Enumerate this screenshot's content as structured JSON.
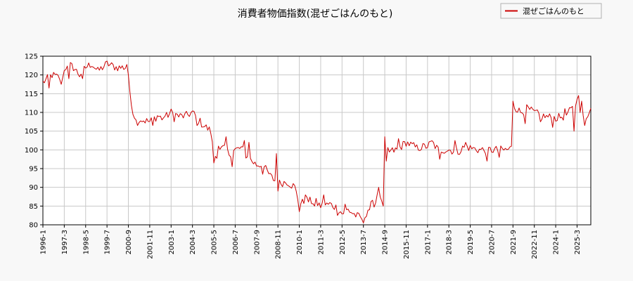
{
  "chart_data": {
    "type": "line",
    "title": "消費者物価指数(混ぜごはんのもと)",
    "xlabel": "",
    "ylabel": "",
    "ylim": [
      80,
      125
    ],
    "yticks": [
      80,
      85,
      90,
      95,
      100,
      105,
      110,
      115,
      120,
      125
    ],
    "x_start": "1996-1",
    "x_end": "2025-12",
    "xticks": [
      "1996-1",
      "1997-3",
      "1998-5",
      "1999-7",
      "2000-9",
      "2001-11",
      "2003-1",
      "2004-3",
      "2005-5",
      "2006-7",
      "2007-9",
      "2008-11",
      "2010-1",
      "2011-3",
      "2012-5",
      "2013-7",
      "2014-9",
      "2015-11",
      "2017-1",
      "2018-3",
      "2019-5",
      "2020-7",
      "2021-9",
      "2022-11",
      "2024-1",
      "2025-3"
    ],
    "grid": true,
    "legend_position": "top-right",
    "series": [
      {
        "name": "混ぜごはんのもと",
        "color": "#cc0000",
        "anchors": [
          [
            "1996-1",
            118
          ],
          [
            "1996-7",
            120
          ],
          [
            "1997-1",
            119
          ],
          [
            "1997-3",
            121
          ],
          [
            "1997-5",
            123
          ],
          [
            "1997-9",
            122
          ],
          [
            "1998-1",
            120
          ],
          [
            "1998-5",
            122
          ],
          [
            "1998-9",
            123
          ],
          [
            "1999-1",
            121
          ],
          [
            "1999-7",
            123
          ],
          [
            "2000-1",
            122
          ],
          [
            "2000-7",
            122
          ],
          [
            "2000-8",
            123
          ],
          [
            "2000-9",
            117
          ],
          [
            "2000-11",
            112
          ],
          [
            "2001-1",
            109
          ],
          [
            "2001-6",
            108
          ],
          [
            "2001-11",
            107.5
          ],
          [
            "2002-4",
            109
          ],
          [
            "2002-10",
            109
          ],
          [
            "2003-1",
            110
          ],
          [
            "2003-6",
            109
          ],
          [
            "2003-10",
            109
          ],
          [
            "2004-3",
            110
          ],
          [
            "2004-9",
            107
          ],
          [
            "2005-3",
            105
          ],
          [
            "2005-5",
            98
          ],
          [
            "2005-11",
            100.5
          ],
          [
            "2006-3",
            99
          ],
          [
            "2006-7",
            100
          ],
          [
            "2006-11",
            100.5
          ],
          [
            "2007-3",
            98
          ],
          [
            "2007-9",
            96
          ],
          [
            "2008-1",
            96
          ],
          [
            "2008-6",
            93
          ],
          [
            "2008-11",
            91
          ],
          [
            "2009-5",
            91.5
          ],
          [
            "2009-10",
            90
          ],
          [
            "2010-1",
            85.5
          ],
          [
            "2010-6",
            86.5
          ],
          [
            "2010-12",
            86
          ],
          [
            "2011-3",
            85
          ],
          [
            "2011-9",
            85.5
          ],
          [
            "2012-2",
            84.5
          ],
          [
            "2012-5",
            83
          ],
          [
            "2012-9",
            84
          ],
          [
            "2013-2",
            82.5
          ],
          [
            "2013-7",
            81.5
          ],
          [
            "2013-11",
            85
          ],
          [
            "2014-3",
            86
          ],
          [
            "2014-8",
            87
          ],
          [
            "2014-9",
            101
          ],
          [
            "2014-12",
            99.5
          ],
          [
            "2015-5",
            100
          ],
          [
            "2015-11",
            102
          ],
          [
            "2016-6",
            100.5
          ],
          [
            "2017-1",
            101
          ],
          [
            "2017-4",
            102
          ],
          [
            "2017-8",
            100
          ],
          [
            "2018-3",
            100
          ],
          [
            "2018-9",
            99.5
          ],
          [
            "2019-2",
            101
          ],
          [
            "2019-5",
            100.5
          ],
          [
            "2019-11",
            100
          ],
          [
            "2020-4",
            100
          ],
          [
            "2020-7",
            100
          ],
          [
            "2020-12",
            100
          ],
          [
            "2021-5",
            100
          ],
          [
            "2021-8",
            100.5
          ],
          [
            "2021-9",
            112
          ],
          [
            "2022-2",
            110
          ],
          [
            "2022-6",
            111
          ],
          [
            "2022-11",
            110
          ],
          [
            "2023-4",
            109
          ],
          [
            "2024-1",
            108.5
          ],
          [
            "2024-7",
            109
          ],
          [
            "2024-12",
            111
          ],
          [
            "2025-3",
            113
          ],
          [
            "2025-6",
            110
          ],
          [
            "2025-9",
            108
          ],
          [
            "2025-12",
            112
          ]
        ],
        "spikes": [
          [
            "1996-5",
            116.5
          ],
          [
            "1997-1",
            117.5
          ],
          [
            "1997-6",
            119
          ],
          [
            "1998-3",
            119
          ],
          [
            "2000-9",
            120
          ],
          [
            "2001-3",
            106.5
          ],
          [
            "2002-1",
            106.5
          ],
          [
            "2002-7",
            108
          ],
          [
            "2003-3",
            107.5
          ],
          [
            "2004-6",
            106.5
          ],
          [
            "2005-5",
            96.5
          ],
          [
            "2005-8",
            101
          ],
          [
            "2006-1",
            103.5
          ],
          [
            "2006-5",
            95.5
          ],
          [
            "2007-1",
            102.5
          ],
          [
            "2007-4",
            102
          ],
          [
            "2008-1",
            93.5
          ],
          [
            "2008-10",
            99
          ],
          [
            "2008-11",
            89
          ],
          [
            "2009-9",
            91
          ],
          [
            "2010-1",
            83.5
          ],
          [
            "2010-5",
            88
          ],
          [
            "2010-11",
            85
          ],
          [
            "2011-5",
            88
          ],
          [
            "2012-2",
            82.5
          ],
          [
            "2012-7",
            85.5
          ],
          [
            "2013-7",
            80.5
          ],
          [
            "2013-11",
            84
          ],
          [
            "2014-4",
            88
          ],
          [
            "2014-5",
            90
          ],
          [
            "2014-8",
            85
          ],
          [
            "2014-9",
            103.5
          ],
          [
            "2014-10",
            97
          ],
          [
            "2015-6",
            103
          ],
          [
            "2017-9",
            97.5
          ],
          [
            "2018-7",
            102.5
          ],
          [
            "2019-2",
            102
          ],
          [
            "2020-4",
            97
          ],
          [
            "2020-12",
            98
          ],
          [
            "2021-9",
            113
          ],
          [
            "2022-5",
            107
          ],
          [
            "2023-3",
            107.5
          ],
          [
            "2023-11",
            106
          ],
          [
            "2024-7",
            111
          ],
          [
            "2025-1",
            105
          ],
          [
            "2025-4",
            114.5
          ],
          [
            "2025-6",
            113
          ],
          [
            "2025-8",
            106.5
          ]
        ]
      }
    ]
  }
}
